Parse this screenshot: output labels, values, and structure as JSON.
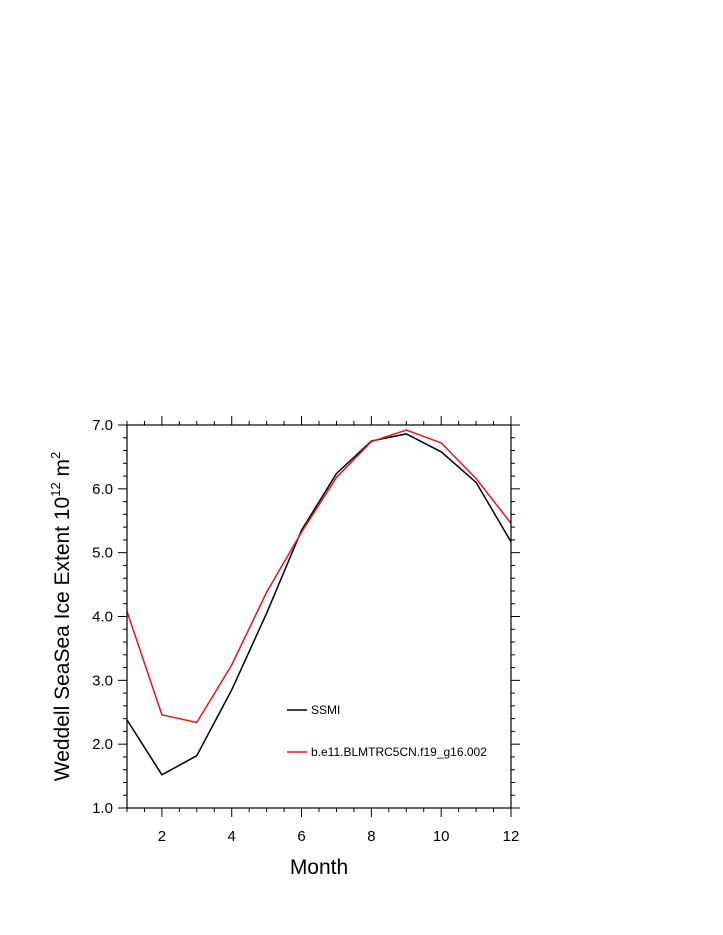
{
  "chart_data": {
    "type": "line",
    "title": "",
    "xlabel": "Month",
    "ylabel": {
      "main": "Weddell SeaSea Ice Extent 10",
      "exp": "12",
      "unit": " m",
      "unit_exp": "2"
    },
    "xlim": [
      1,
      12
    ],
    "ylim": [
      1.0,
      7.0
    ],
    "xticks": [
      2,
      4,
      6,
      8,
      10,
      12
    ],
    "xtick_labels": [
      "2",
      "4",
      "6",
      "8",
      "10",
      "12"
    ],
    "yticks": [
      1.0,
      2.0,
      3.0,
      4.0,
      5.0,
      6.0,
      7.0
    ],
    "ytick_labels": [
      "1.0",
      "2.0",
      "3.0",
      "4.0",
      "5.0",
      "6.0",
      "7.0"
    ],
    "grid": false,
    "legend": "inside-bottom-center",
    "x": [
      1,
      2,
      3,
      4,
      5,
      6,
      7,
      8,
      9,
      10,
      11,
      12
    ],
    "series": [
      {
        "name": "SSMI",
        "color": "#000000",
        "values": [
          2.38,
          1.52,
          1.82,
          2.85,
          4.05,
          5.35,
          6.24,
          6.75,
          6.86,
          6.58,
          6.1,
          5.17
        ]
      },
      {
        "name": "b.e11.BLMTRC5CN.f19_g16.002",
        "color": "#e8141e",
        "values": [
          4.08,
          2.46,
          2.34,
          3.24,
          4.38,
          5.32,
          6.18,
          6.74,
          6.92,
          6.72,
          6.16,
          5.46
        ]
      }
    ]
  }
}
